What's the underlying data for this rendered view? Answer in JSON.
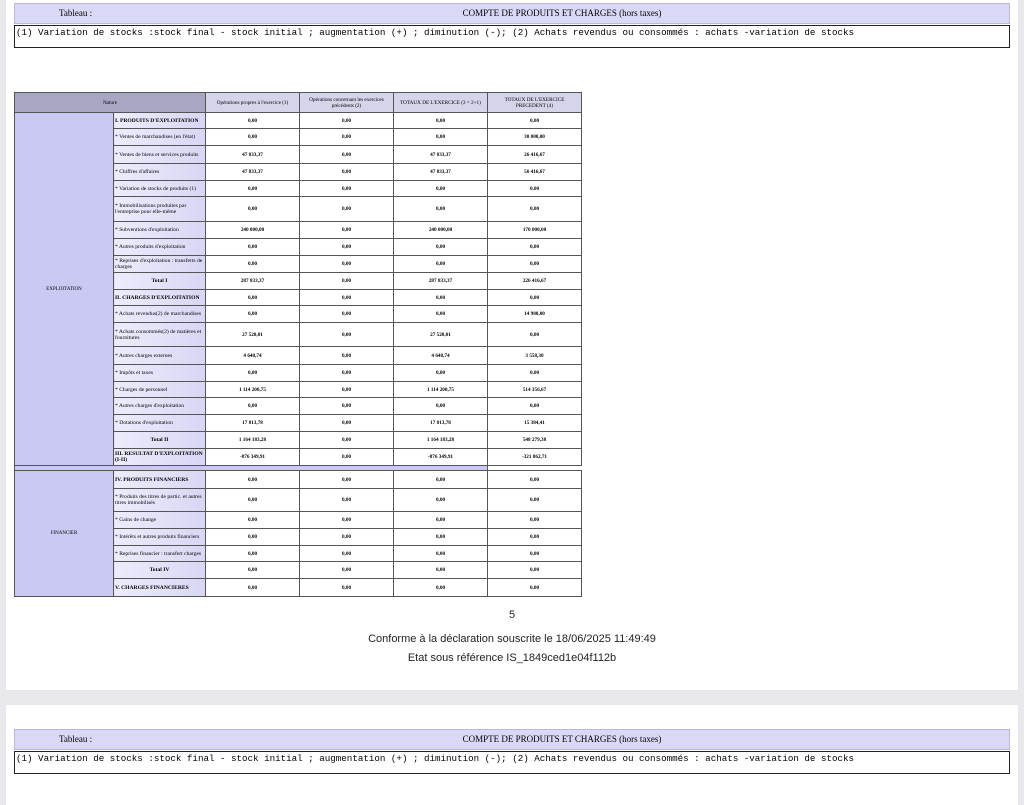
{
  "header": {
    "label": "Tableau :",
    "title": "COMPTE DE PRODUITS ET CHARGES (hors taxes)"
  },
  "note": "(1) Variation de stocks :stock final - stock initial ; augmentation (+) ; diminution (-); (2) Achats revendus ou consommés : achats -variation de stocks",
  "table": {
    "columns": [
      "Nature",
      "Opérations propres à l'exercice (1)",
      "Opérations concernant les exercices précédents (2)",
      "TOTAUX DE L'EXERCICE (3 = 2+1)",
      "TOTAUX DE L'EXERCICE PRECEDENT (4)"
    ],
    "groups": [
      {
        "category": "EXPLOITATION",
        "rows": [
          {
            "label": "I. PRODUITS D'EXPLOITATION",
            "style": "b",
            "h": 16,
            "values": [
              "0,00",
              "0,00",
              "0,00",
              "0,00"
            ]
          },
          {
            "label": "* Ventes de marchandises (en l'état)",
            "h": 17,
            "values": [
              "0,00",
              "0,00",
              "0,00",
              "30 000,00"
            ]
          },
          {
            "label": "* Ventes de biens et services produits",
            "h": 18,
            "values": [
              "47 833,37",
              "0,00",
              "47 833,37",
              "26 416,67"
            ]
          },
          {
            "label": "* Chiffres d'affaires",
            "h": 17,
            "values": [
              "47 833,37",
              "0,00",
              "47 833,37",
              "56 416,67"
            ]
          },
          {
            "label": "* Variation de stocks de produits (1)",
            "h": 16,
            "values": [
              "0,00",
              "0,00",
              "0,00",
              "0,00"
            ]
          },
          {
            "label": "* Immobilisations produites par l'entreprise pour elle-même",
            "h": 25,
            "values": [
              "0,00",
              "0,00",
              "0,00",
              "0,00"
            ]
          },
          {
            "label": "* Subventions d'exploitation",
            "h": 17,
            "values": [
              "240 000,00",
              "0,00",
              "240 000,00",
              "170 000,00"
            ]
          },
          {
            "label": "* Autres produits d'exploitation",
            "h": 17,
            "values": [
              "0,00",
              "0,00",
              "0,00",
              "0,00"
            ]
          },
          {
            "label": "* Reprises d'exploitation : transferts de charges",
            "h": 17,
            "values": [
              "0,00",
              "0,00",
              "0,00",
              "0,00"
            ]
          },
          {
            "label": "Total I",
            "style": "tot",
            "h": 17,
            "values": [
              "287 833,37",
              "0,00",
              "287 833,37",
              "226 416,67"
            ]
          },
          {
            "label": "II. CHARGES D'EXPLOITATION",
            "style": "b",
            "h": 16,
            "values": [
              "0,00",
              "0,00",
              "0,00",
              "0,00"
            ]
          },
          {
            "label": "* Achats revendus(2) de marchandises",
            "h": 17,
            "values": [
              "0,00",
              "0,00",
              "0,00",
              "14 980,00"
            ]
          },
          {
            "label": "* Achats consommés(2) de matières et fournitures",
            "h": 24,
            "values": [
              "27 520,01",
              "0,00",
              "27 520,01",
              "0,00"
            ]
          },
          {
            "label": "* Autres charges externes",
            "h": 18,
            "values": [
              "4 648,74",
              "0,00",
              "4 648,74",
              "3 558,30"
            ]
          },
          {
            "label": "* Impôts et taxes",
            "h": 17,
            "values": [
              "0,00",
              "0,00",
              "0,00",
              "0,00"
            ]
          },
          {
            "label": "* Charges de personnel",
            "h": 16,
            "values": [
              "1 114 200,75",
              "0,00",
              "1 114 200,75",
              "514 356,67"
            ]
          },
          {
            "label": "* Autres charges d'exploitation",
            "h": 17,
            "values": [
              "0,00",
              "0,00",
              "0,00",
              "0,00"
            ]
          },
          {
            "label": "* Dotations d'exploitation",
            "h": 17,
            "values": [
              "17 813,78",
              "0,00",
              "17 813,78",
              "15 384,41"
            ]
          },
          {
            "label": "Total II",
            "style": "tot",
            "h": 17,
            "values": [
              "1 164 183,28",
              "0,00",
              "1 164 183,28",
              "548 279,38"
            ]
          },
          {
            "label": "III. RESULTAT D'EXPLOITATION (I-II)",
            "style": "b",
            "h": 17,
            "values": [
              "-876 349,91",
              "0,00",
              "-876 349,91",
              "-321 862,71"
            ]
          }
        ]
      },
      {
        "category": "FINANCIER",
        "rows": [
          {
            "label": "IV. PRODUITS FINANCIERS",
            "style": "b",
            "h": 18,
            "values": [
              "0,00",
              "0,00",
              "0,00",
              "0,00"
            ]
          },
          {
            "label": "* Produits des titres de partic. et autres titres immobilisés",
            "h": 23,
            "values": [
              "0,00",
              "0,00",
              "0,00",
              "0,00"
            ]
          },
          {
            "label": "* Gains de change",
            "h": 17,
            "values": [
              "0,00",
              "0,00",
              "0,00",
              "0,00"
            ]
          },
          {
            "label": "* Intérêts et autres produits financiers",
            "h": 17,
            "values": [
              "0,00",
              "0,00",
              "0,00",
              "0,00"
            ]
          },
          {
            "label": "* Reprises financier : transfert charges",
            "h": 16,
            "values": [
              "0,00",
              "0,00",
              "0,00",
              "0,00"
            ]
          },
          {
            "label": "Total IV",
            "style": "tot",
            "h": 17,
            "values": [
              "0,00",
              "0,00",
              "0,00",
              "0,00"
            ]
          },
          {
            "label": "V. CHARGES FINANCIERES",
            "style": "b",
            "h": 18,
            "values": [
              "0,00",
              "0,00",
              "0,00",
              "0,00"
            ]
          }
        ]
      }
    ]
  },
  "footer": {
    "page_number": "5",
    "conformity": "Conforme à la déclaration souscrite le 18/06/2025 11:49:49",
    "reference": "Etat sous référence IS_1849ced1e04f112b"
  }
}
